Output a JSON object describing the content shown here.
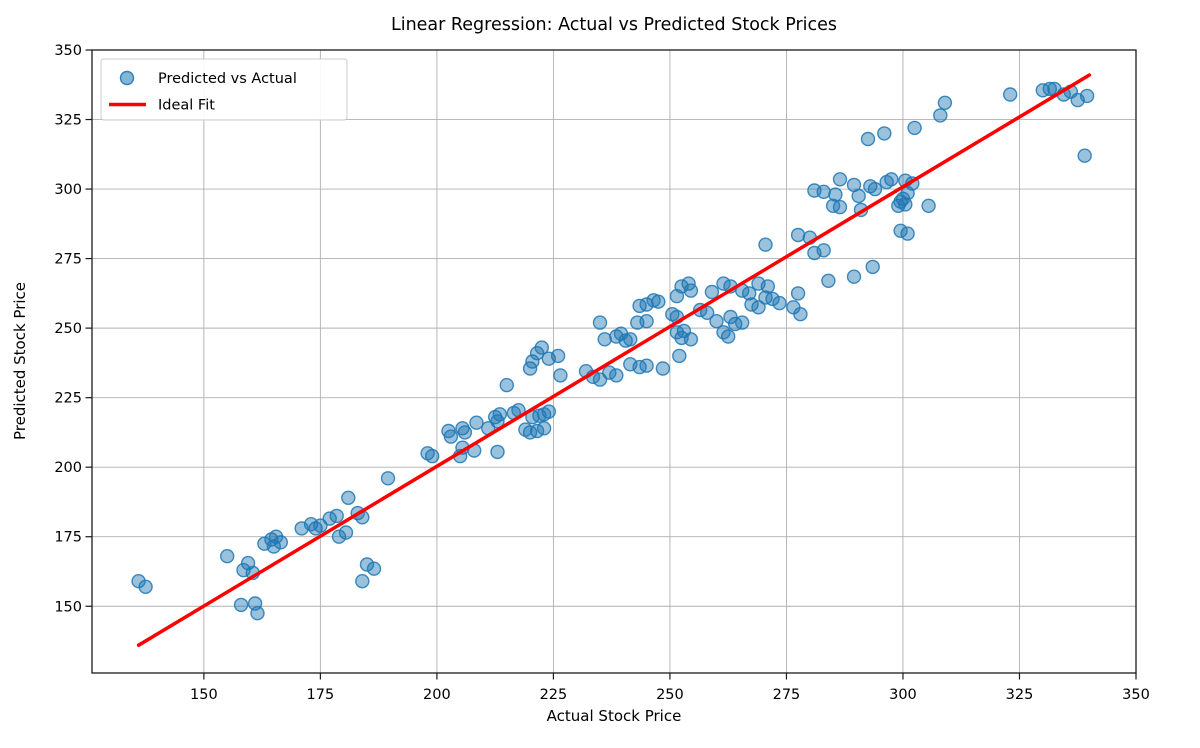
{
  "figure": {
    "title": "Linear Regression: Actual vs Predicted Stock Prices",
    "xlabel": "Actual Stock Price",
    "ylabel": "Predicted Stock Price"
  },
  "legend": {
    "entries": [
      {
        "swatch": "scatter-marker",
        "label": "Predicted vs Actual"
      },
      {
        "swatch": "line",
        "label": "Ideal Fit"
      }
    ]
  },
  "colors": {
    "scatter": "#1f77b4",
    "scatter_fill_opacity": 0.45,
    "scatter_edge_opacity": 0.85,
    "line": "#ff0000",
    "grid": "#b0b0b0",
    "spine": "#1a1a1a",
    "legend_border": "#cccccc",
    "background": "#ffffff"
  },
  "chart_data": {
    "type": "scatter",
    "title": "Linear Regression: Actual vs Predicted Stock Prices",
    "xlabel": "Actual Stock Price",
    "ylabel": "Predicted Stock Price",
    "xlim": [
      126,
      350
    ],
    "ylim": [
      126,
      350
    ],
    "xticks": [
      150,
      175,
      200,
      225,
      250,
      275,
      300,
      325,
      350
    ],
    "yticks": [
      150,
      175,
      200,
      225,
      250,
      275,
      300,
      325,
      350
    ],
    "grid": true,
    "legend_position": "upper left",
    "marker_radius": 6.5,
    "series": [
      {
        "name": "Predicted vs Actual",
        "points": [
          [
            136,
            159
          ],
          [
            137.5,
            157
          ],
          [
            155,
            168
          ],
          [
            158.5,
            163
          ],
          [
            159.5,
            165.5
          ],
          [
            160.5,
            162
          ],
          [
            158,
            150.5
          ],
          [
            161,
            151
          ],
          [
            161.5,
            147.5
          ],
          [
            163,
            172.5
          ],
          [
            164.5,
            174
          ],
          [
            165,
            171.5
          ],
          [
            165.5,
            175
          ],
          [
            166.5,
            173
          ],
          [
            171,
            178
          ],
          [
            173,
            179.5
          ],
          [
            174,
            178
          ],
          [
            175,
            179
          ],
          [
            177,
            181.5
          ],
          [
            178.5,
            182.5
          ],
          [
            179,
            175
          ],
          [
            180.5,
            176.5
          ],
          [
            181,
            189
          ],
          [
            183,
            183.5
          ],
          [
            184,
            182
          ],
          [
            184,
            159
          ],
          [
            185,
            165
          ],
          [
            186.5,
            163.5
          ],
          [
            189.5,
            196
          ],
          [
            198,
            205
          ],
          [
            199,
            204
          ],
          [
            202.5,
            213
          ],
          [
            203,
            211
          ],
          [
            205.5,
            214
          ],
          [
            206,
            212.5
          ],
          [
            208.5,
            216
          ],
          [
            205,
            204
          ],
          [
            205.5,
            207
          ],
          [
            208,
            206
          ],
          [
            211,
            214
          ],
          [
            212.5,
            218
          ],
          [
            213,
            216.5
          ],
          [
            213.5,
            219
          ],
          [
            213,
            205.5
          ],
          [
            215,
            229.5
          ],
          [
            216.5,
            219.5
          ],
          [
            217.5,
            220.5
          ],
          [
            219,
            213.5
          ],
          [
            220,
            212.5
          ],
          [
            221.5,
            213
          ],
          [
            223,
            214
          ],
          [
            220.5,
            218
          ],
          [
            222,
            218.5
          ],
          [
            223,
            219
          ],
          [
            224,
            220
          ],
          [
            220,
            235.5
          ],
          [
            220.5,
            238
          ],
          [
            221.5,
            241
          ],
          [
            222.5,
            243
          ],
          [
            224,
            239
          ],
          [
            226,
            240
          ],
          [
            226.5,
            233
          ],
          [
            232,
            234.5
          ],
          [
            233.5,
            232.5
          ],
          [
            235,
            231.5
          ],
          [
            237,
            234
          ],
          [
            238.5,
            233
          ],
          [
            235,
            252
          ],
          [
            236,
            246
          ],
          [
            238.5,
            247
          ],
          [
            239.5,
            248
          ],
          [
            240.5,
            245.5
          ],
          [
            241.5,
            246
          ],
          [
            241.5,
            237
          ],
          [
            243.5,
            236
          ],
          [
            245,
            236.5
          ],
          [
            248.5,
            235.5
          ],
          [
            243.5,
            258
          ],
          [
            245,
            258.5
          ],
          [
            246.5,
            260
          ],
          [
            247.5,
            259.5
          ],
          [
            243,
            252
          ],
          [
            245,
            252.5
          ],
          [
            250.5,
            255
          ],
          [
            251.5,
            254
          ],
          [
            251.5,
            248.5
          ],
          [
            253,
            249
          ],
          [
            252.5,
            246.5
          ],
          [
            254.5,
            246
          ],
          [
            252,
            240
          ],
          [
            252.5,
            265
          ],
          [
            254,
            266
          ],
          [
            254.5,
            263.5
          ],
          [
            251.5,
            261.5
          ],
          [
            256.5,
            256.5
          ],
          [
            258,
            255.5
          ],
          [
            260,
            252.5
          ],
          [
            263,
            254
          ],
          [
            264,
            251.5
          ],
          [
            265.5,
            252
          ],
          [
            261.5,
            248.5
          ],
          [
            262.5,
            247
          ],
          [
            259,
            263
          ],
          [
            261.5,
            266
          ],
          [
            263,
            265
          ],
          [
            265.5,
            263.5
          ],
          [
            267,
            262.5
          ],
          [
            269,
            266
          ],
          [
            271,
            265
          ],
          [
            267.5,
            258.5
          ],
          [
            269,
            257.5
          ],
          [
            270.5,
            261
          ],
          [
            272,
            260.5
          ],
          [
            273.5,
            259
          ],
          [
            276.5,
            257.5
          ],
          [
            278,
            255
          ],
          [
            277.5,
            262.5
          ],
          [
            270.5,
            280
          ],
          [
            277.5,
            283.5
          ],
          [
            280,
            282.5
          ],
          [
            281,
            277
          ],
          [
            283,
            278
          ],
          [
            284,
            267
          ],
          [
            289.5,
            268.5
          ],
          [
            293.5,
            272
          ],
          [
            281,
            299.5
          ],
          [
            283,
            299
          ],
          [
            285.5,
            298
          ],
          [
            285,
            294
          ],
          [
            286.5,
            293.5
          ],
          [
            291,
            292.5
          ],
          [
            286.5,
            303.5
          ],
          [
            289.5,
            301.5
          ],
          [
            290.5,
            297.5
          ],
          [
            293,
            301
          ],
          [
            294,
            300
          ],
          [
            296.5,
            302.5
          ],
          [
            297.5,
            303.5
          ],
          [
            299,
            294
          ],
          [
            299.5,
            295.5
          ],
          [
            300,
            296.5
          ],
          [
            300.5,
            294.5
          ],
          [
            301,
            298.5
          ],
          [
            300.5,
            303
          ],
          [
            302,
            302
          ],
          [
            299.5,
            285
          ],
          [
            301,
            284
          ],
          [
            305.5,
            294
          ],
          [
            292.5,
            318
          ],
          [
            296,
            320
          ],
          [
            302.5,
            322
          ],
          [
            308,
            326.5
          ],
          [
            309,
            331
          ],
          [
            323,
            334
          ],
          [
            330,
            335.5
          ],
          [
            331.5,
            336
          ],
          [
            332.5,
            336
          ],
          [
            334.5,
            334
          ],
          [
            336,
            335
          ],
          [
            337.5,
            332
          ],
          [
            339.5,
            333.5
          ],
          [
            339,
            312
          ]
        ]
      }
    ],
    "line": {
      "name": "Ideal Fit",
      "x": [
        136,
        340
      ],
      "y": [
        136,
        341
      ]
    }
  }
}
